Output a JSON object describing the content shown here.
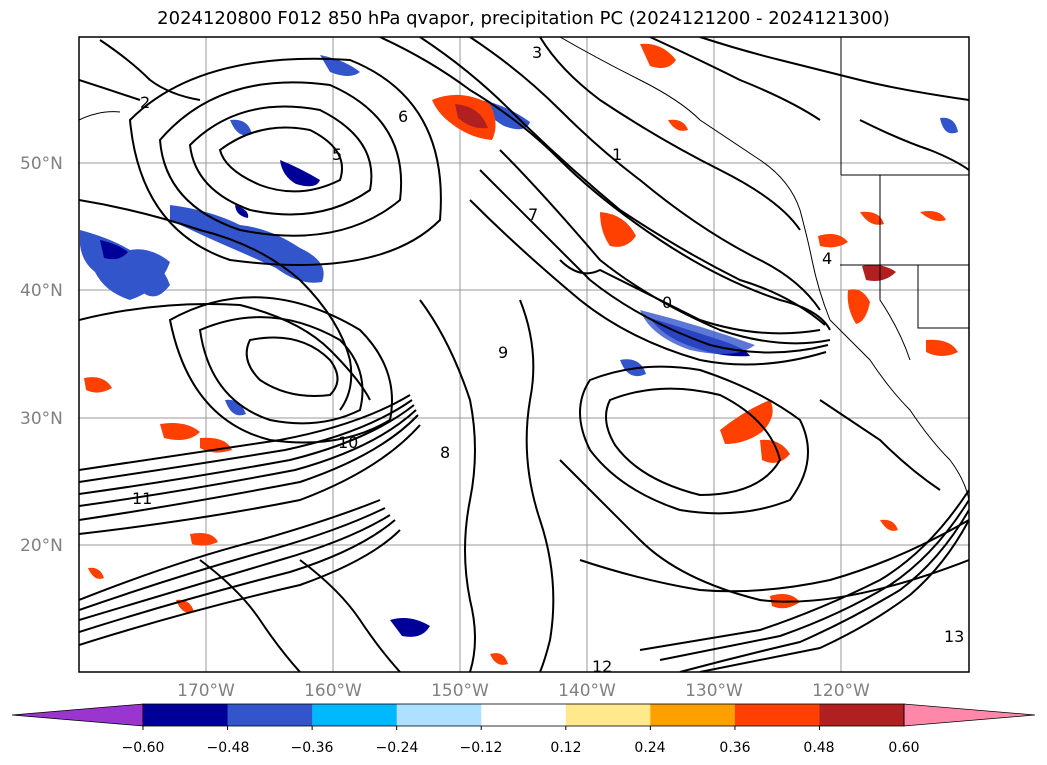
{
  "title": "2024120800 F012 850 hPa qvapor, precipitation PC (2024121200 - 2024121300)",
  "map": {
    "lat_labels": [
      "50°N",
      "40°N",
      "30°N",
      "20°N"
    ],
    "lon_labels": [
      "170°W",
      "160°W",
      "150°W",
      "140°W",
      "130°W",
      "120°W"
    ],
    "contour_labels": [
      "3",
      "2",
      "1",
      "6",
      "5",
      "7",
      "0",
      "9",
      "8",
      "10",
      "11",
      "12",
      "13",
      "4"
    ],
    "grid": true
  },
  "colorbar": {
    "ticks": [
      "−0.60",
      "−0.48",
      "−0.36",
      "−0.24",
      "−0.12",
      "0.12",
      "0.24",
      "0.36",
      "0.48",
      "0.60"
    ],
    "colors": [
      "#9a35d0",
      "#000099",
      "#3355cc",
      "#00b8ff",
      "#aee0ff",
      "#ffffff",
      "#ffe98c",
      "#ffa000",
      "#ff4000",
      "#b02020",
      "#ff88aa"
    ]
  }
}
